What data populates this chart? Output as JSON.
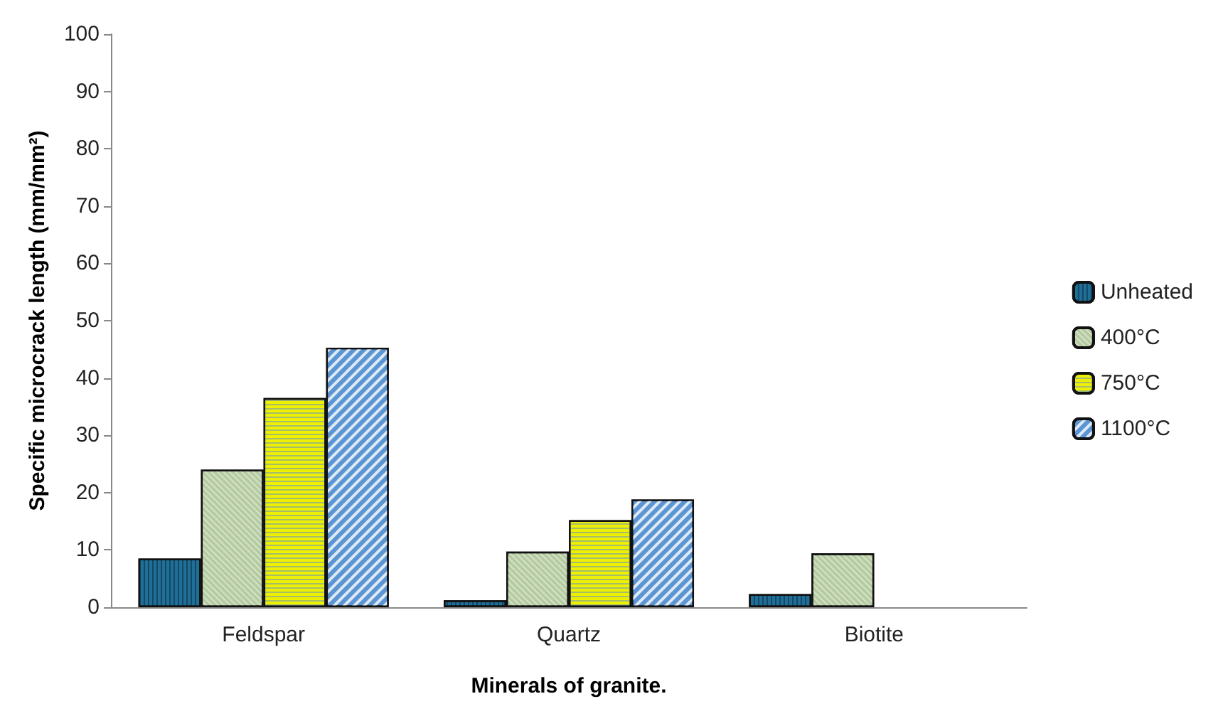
{
  "chart_data": {
    "type": "bar",
    "xlabel": "Minerals of granite.",
    "ylabel": "Specific microcrack length (mm/mm²)",
    "categories": [
      "Feldspar",
      "Quartz",
      "Biotite"
    ],
    "series": [
      {
        "name": "Unheated",
        "color": "#1f6f99",
        "values": [
          8.5,
          1.2,
          2.3
        ]
      },
      {
        "name": "400°C",
        "color": "#b5cba0",
        "values": [
          24,
          9.7,
          9.4
        ]
      },
      {
        "name": "750°C",
        "color": "#eef000",
        "values": [
          36.5,
          15.2,
          null
        ]
      },
      {
        "name": "1100°C",
        "color": "#5b95d3",
        "values": [
          45.3,
          18.8,
          null
        ]
      }
    ],
    "ylim": [
      0,
      100
    ],
    "yticks": [
      0,
      10,
      20,
      30,
      40,
      50,
      60,
      70,
      80,
      90,
      100
    ],
    "grid": false,
    "legend": "right"
  }
}
